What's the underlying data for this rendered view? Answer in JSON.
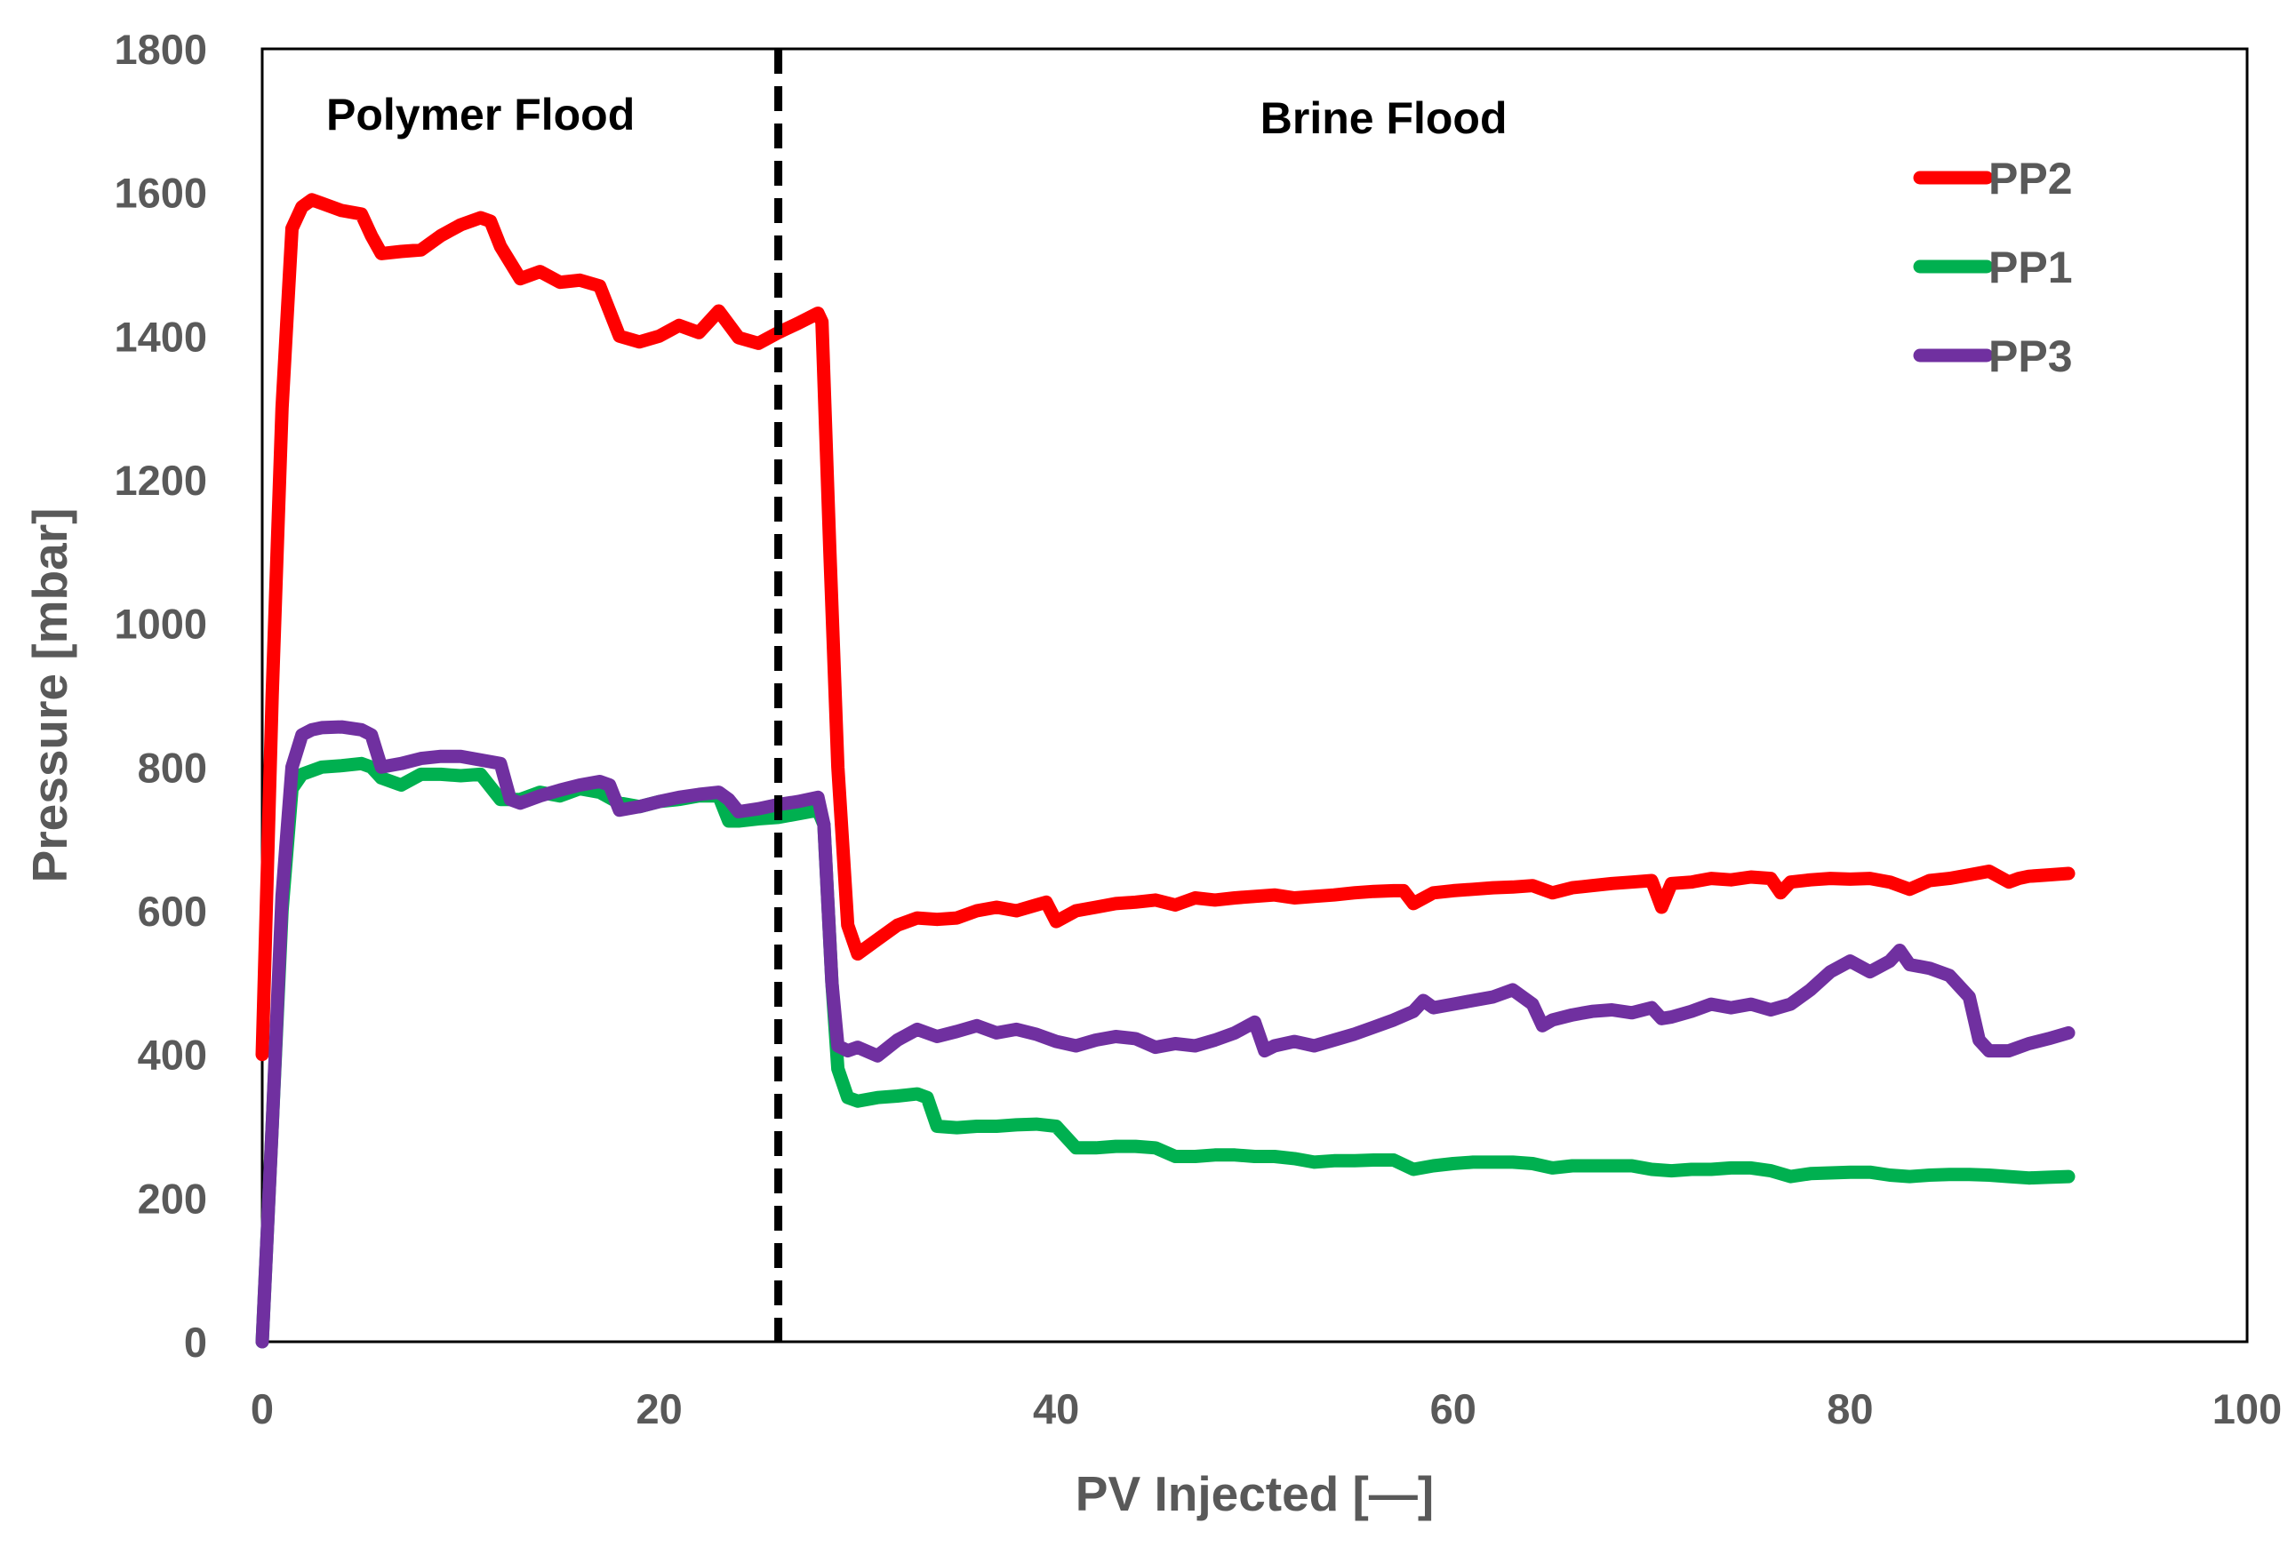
{
  "chart_data": {
    "type": "line",
    "title": "",
    "xlabel": "PV Injected [—]",
    "ylabel": "Pressure [mbar]",
    "xlim": [
      0,
      100
    ],
    "ylim": [
      0,
      1800
    ],
    "x_ticks": [
      0,
      20,
      40,
      60,
      80,
      100
    ],
    "y_ticks": [
      0,
      200,
      400,
      600,
      800,
      1000,
      1200,
      1400,
      1600,
      1800
    ],
    "grid": false,
    "legend_position": "top-right",
    "vline": {
      "x": 26,
      "style": "dashed",
      "color": "#000000"
    },
    "annotations": [
      {
        "text": "Polymer Flood",
        "x": 11,
        "y": 1710
      },
      {
        "text": "Brine Flood",
        "x": 56.5,
        "y": 1705
      }
    ],
    "series": [
      {
        "name": "PP2",
        "color": "#ff0000",
        "points": [
          [
            0,
            400
          ],
          [
            0.5,
            900
          ],
          [
            1,
            1300
          ],
          [
            1.5,
            1550
          ],
          [
            2,
            1580
          ],
          [
            2.5,
            1590
          ],
          [
            3,
            1585
          ],
          [
            4,
            1575
          ],
          [
            5,
            1570
          ],
          [
            5.5,
            1540
          ],
          [
            6,
            1515
          ],
          [
            7,
            1518
          ],
          [
            8,
            1520
          ],
          [
            9,
            1540
          ],
          [
            10,
            1555
          ],
          [
            11,
            1565
          ],
          [
            11.5,
            1560
          ],
          [
            12,
            1525
          ],
          [
            13,
            1480
          ],
          [
            14,
            1490
          ],
          [
            15,
            1475
          ],
          [
            16,
            1478
          ],
          [
            17,
            1470
          ],
          [
            18,
            1400
          ],
          [
            19,
            1392
          ],
          [
            20,
            1400
          ],
          [
            21,
            1415
          ],
          [
            22,
            1405
          ],
          [
            23,
            1435
          ],
          [
            24,
            1398
          ],
          [
            25,
            1390
          ],
          [
            26,
            1405
          ],
          [
            27,
            1418
          ],
          [
            28,
            1432
          ],
          [
            28.2,
            1420
          ],
          [
            28.6,
            1100
          ],
          [
            29,
            800
          ],
          [
            29.5,
            580
          ],
          [
            30,
            540
          ],
          [
            31,
            560
          ],
          [
            32,
            580
          ],
          [
            33,
            590
          ],
          [
            34,
            588
          ],
          [
            35,
            590
          ],
          [
            36,
            600
          ],
          [
            37,
            605
          ],
          [
            38,
            600
          ],
          [
            39,
            608
          ],
          [
            39.5,
            612
          ],
          [
            40,
            585
          ],
          [
            41,
            600
          ],
          [
            42,
            605
          ],
          [
            43,
            610
          ],
          [
            44,
            612
          ],
          [
            45,
            615
          ],
          [
            46,
            608
          ],
          [
            47,
            618
          ],
          [
            48,
            615
          ],
          [
            49,
            618
          ],
          [
            50,
            620
          ],
          [
            51,
            622
          ],
          [
            52,
            618
          ],
          [
            53,
            620
          ],
          [
            54,
            622
          ],
          [
            55,
            625
          ],
          [
            56,
            627
          ],
          [
            57,
            628
          ],
          [
            57.5,
            628
          ],
          [
            58,
            610
          ],
          [
            59,
            625
          ],
          [
            60,
            628
          ],
          [
            61,
            630
          ],
          [
            62,
            632
          ],
          [
            63,
            633
          ],
          [
            64,
            635
          ],
          [
            65,
            625
          ],
          [
            66,
            632
          ],
          [
            67,
            635
          ],
          [
            68,
            638
          ],
          [
            69,
            640
          ],
          [
            70,
            642
          ],
          [
            70.5,
            605
          ],
          [
            71,
            638
          ],
          [
            72,
            640
          ],
          [
            73,
            645
          ],
          [
            74,
            643
          ],
          [
            75,
            647
          ],
          [
            76,
            645
          ],
          [
            76.5,
            625
          ],
          [
            77,
            640
          ],
          [
            78,
            643
          ],
          [
            79,
            645
          ],
          [
            80,
            644
          ],
          [
            81,
            645
          ],
          [
            82,
            640
          ],
          [
            83,
            630
          ],
          [
            84,
            642
          ],
          [
            85,
            645
          ],
          [
            86,
            650
          ],
          [
            87,
            655
          ],
          [
            88,
            640
          ],
          [
            88.5,
            645
          ],
          [
            89,
            648
          ],
          [
            90,
            650
          ],
          [
            91,
            652
          ]
        ]
      },
      {
        "name": "PP1",
        "color": "#00b050",
        "points": [
          [
            0,
            0
          ],
          [
            0.5,
            300
          ],
          [
            1,
            600
          ],
          [
            1.5,
            770
          ],
          [
            2,
            790
          ],
          [
            3,
            800
          ],
          [
            4,
            802
          ],
          [
            5,
            805
          ],
          [
            5.5,
            800
          ],
          [
            6,
            785
          ],
          [
            7,
            775
          ],
          [
            8,
            790
          ],
          [
            9,
            790
          ],
          [
            10,
            788
          ],
          [
            11,
            790
          ],
          [
            12,
            755
          ],
          [
            13,
            755
          ],
          [
            14,
            765
          ],
          [
            15,
            760
          ],
          [
            16,
            770
          ],
          [
            17,
            765
          ],
          [
            18,
            750
          ],
          [
            19,
            745
          ],
          [
            20,
            752
          ],
          [
            21,
            755
          ],
          [
            22,
            760
          ],
          [
            23,
            760
          ],
          [
            23.5,
            725
          ],
          [
            24,
            725
          ],
          [
            25,
            728
          ],
          [
            26,
            730
          ],
          [
            27,
            735
          ],
          [
            28,
            740
          ],
          [
            28.3,
            720
          ],
          [
            28.7,
            500
          ],
          [
            29,
            380
          ],
          [
            29.5,
            340
          ],
          [
            30,
            335
          ],
          [
            31,
            340
          ],
          [
            32,
            342
          ],
          [
            33,
            345
          ],
          [
            33.5,
            340
          ],
          [
            34,
            300
          ],
          [
            35,
            298
          ],
          [
            36,
            300
          ],
          [
            37,
            300
          ],
          [
            38,
            302
          ],
          [
            39,
            303
          ],
          [
            40,
            300
          ],
          [
            41,
            270
          ],
          [
            42,
            270
          ],
          [
            43,
            272
          ],
          [
            44,
            272
          ],
          [
            45,
            270
          ],
          [
            46,
            258
          ],
          [
            47,
            258
          ],
          [
            48,
            260
          ],
          [
            49,
            260
          ],
          [
            50,
            258
          ],
          [
            51,
            258
          ],
          [
            52,
            255
          ],
          [
            53,
            250
          ],
          [
            54,
            252
          ],
          [
            55,
            252
          ],
          [
            56,
            253
          ],
          [
            57,
            253
          ],
          [
            58,
            240
          ],
          [
            59,
            245
          ],
          [
            60,
            248
          ],
          [
            61,
            250
          ],
          [
            62,
            250
          ],
          [
            63,
            250
          ],
          [
            64,
            248
          ],
          [
            65,
            242
          ],
          [
            66,
            245
          ],
          [
            67,
            245
          ],
          [
            68,
            245
          ],
          [
            69,
            245
          ],
          [
            70,
            240
          ],
          [
            71,
            238
          ],
          [
            72,
            240
          ],
          [
            73,
            240
          ],
          [
            74,
            242
          ],
          [
            75,
            242
          ],
          [
            76,
            238
          ],
          [
            77,
            230
          ],
          [
            78,
            234
          ],
          [
            79,
            235
          ],
          [
            80,
            236
          ],
          [
            81,
            236
          ],
          [
            82,
            232
          ],
          [
            83,
            230
          ],
          [
            84,
            232
          ],
          [
            85,
            233
          ],
          [
            86,
            233
          ],
          [
            87,
            232
          ],
          [
            88,
            230
          ],
          [
            89,
            228
          ],
          [
            90,
            229
          ],
          [
            91,
            230
          ]
        ]
      },
      {
        "name": "PP3",
        "color": "#7030a0",
        "points": [
          [
            0,
            0
          ],
          [
            0.5,
            300
          ],
          [
            1,
            620
          ],
          [
            1.5,
            800
          ],
          [
            2,
            845
          ],
          [
            2.5,
            852
          ],
          [
            3,
            855
          ],
          [
            4,
            856
          ],
          [
            5,
            852
          ],
          [
            5.5,
            845
          ],
          [
            6,
            800
          ],
          [
            7,
            805
          ],
          [
            8,
            812
          ],
          [
            9,
            815
          ],
          [
            10,
            815
          ],
          [
            11,
            810
          ],
          [
            12,
            805
          ],
          [
            12.5,
            755
          ],
          [
            13,
            750
          ],
          [
            14,
            760
          ],
          [
            15,
            768
          ],
          [
            16,
            775
          ],
          [
            17,
            780
          ],
          [
            17.5,
            775
          ],
          [
            18,
            740
          ],
          [
            19,
            745
          ],
          [
            20,
            752
          ],
          [
            21,
            758
          ],
          [
            22,
            762
          ],
          [
            23,
            765
          ],
          [
            23.5,
            755
          ],
          [
            24,
            738
          ],
          [
            25,
            742
          ],
          [
            26,
            748
          ],
          [
            27,
            752
          ],
          [
            28,
            758
          ],
          [
            28.3,
            720
          ],
          [
            28.7,
            500
          ],
          [
            29,
            412
          ],
          [
            29.5,
            405
          ],
          [
            30,
            410
          ],
          [
            31,
            398
          ],
          [
            32,
            420
          ],
          [
            33,
            435
          ],
          [
            34,
            425
          ],
          [
            35,
            432
          ],
          [
            36,
            440
          ],
          [
            37,
            430
          ],
          [
            38,
            435
          ],
          [
            39,
            428
          ],
          [
            40,
            418
          ],
          [
            41,
            412
          ],
          [
            42,
            420
          ],
          [
            43,
            425
          ],
          [
            44,
            422
          ],
          [
            45,
            410
          ],
          [
            46,
            415
          ],
          [
            47,
            412
          ],
          [
            48,
            420
          ],
          [
            49,
            430
          ],
          [
            50,
            445
          ],
          [
            50.5,
            405
          ],
          [
            51,
            412
          ],
          [
            52,
            418
          ],
          [
            53,
            412
          ],
          [
            54,
            420
          ],
          [
            55,
            428
          ],
          [
            56,
            438
          ],
          [
            57,
            448
          ],
          [
            58,
            460
          ],
          [
            58.5,
            475
          ],
          [
            59,
            465
          ],
          [
            60,
            470
          ],
          [
            61,
            475
          ],
          [
            62,
            480
          ],
          [
            63,
            490
          ],
          [
            64,
            470
          ],
          [
            64.5,
            440
          ],
          [
            65,
            448
          ],
          [
            66,
            455
          ],
          [
            67,
            460
          ],
          [
            68,
            462
          ],
          [
            69,
            458
          ],
          [
            70,
            465
          ],
          [
            70.5,
            450
          ],
          [
            71,
            452
          ],
          [
            72,
            460
          ],
          [
            73,
            470
          ],
          [
            74,
            465
          ],
          [
            75,
            470
          ],
          [
            76,
            462
          ],
          [
            77,
            470
          ],
          [
            78,
            490
          ],
          [
            79,
            515
          ],
          [
            80,
            530
          ],
          [
            81,
            515
          ],
          [
            82,
            530
          ],
          [
            82.5,
            545
          ],
          [
            83,
            525
          ],
          [
            84,
            520
          ],
          [
            85,
            510
          ],
          [
            86,
            480
          ],
          [
            86.5,
            420
          ],
          [
            87,
            405
          ],
          [
            88,
            405
          ],
          [
            89,
            415
          ],
          [
            90,
            422
          ],
          [
            91,
            430
          ]
        ]
      }
    ]
  }
}
